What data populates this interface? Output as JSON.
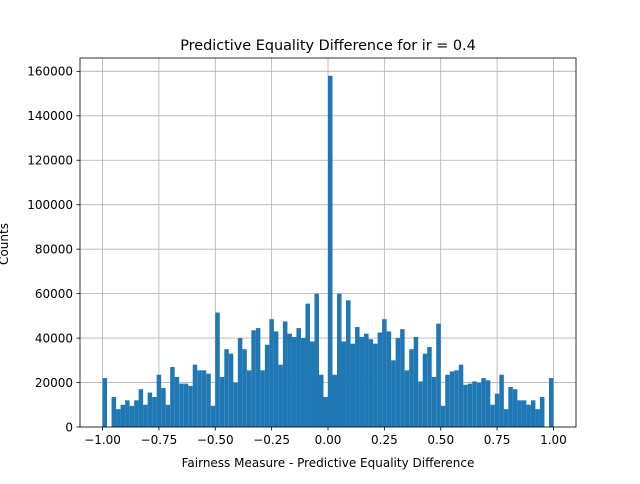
{
  "chart_data": {
    "type": "bar",
    "title": "Predictive Equality Difference for ir = 0.4",
    "xlabel": "Fairness Measure - Predictive Equality Difference",
    "ylabel": "Counts",
    "grid": true,
    "xlim": [
      -1.1,
      1.1
    ],
    "ylim": [
      0,
      166000
    ],
    "bin_width": 0.02,
    "x_ticks": [
      -1.0,
      -0.75,
      -0.5,
      -0.25,
      0.0,
      0.25,
      0.5,
      0.75,
      1.0
    ],
    "x_tick_labels": [
      "−1.00",
      "−0.75",
      "−0.50",
      "−0.25",
      "0.00",
      "0.25",
      "0.50",
      "0.75",
      "1.00"
    ],
    "y_ticks": [
      0,
      20000,
      40000,
      60000,
      80000,
      100000,
      120000,
      140000,
      160000
    ],
    "y_tick_labels": [
      "0",
      "20000",
      "40000",
      "60000",
      "80000",
      "100000",
      "120000",
      "140000",
      "160000"
    ],
    "bar_color": "#1f77b4",
    "bins": [
      {
        "x0": -1.0,
        "count": 22000
      },
      {
        "x0": -0.98,
        "count": 0
      },
      {
        "x0": -0.96,
        "count": 13500
      },
      {
        "x0": -0.94,
        "count": 8000
      },
      {
        "x0": -0.92,
        "count": 10000
      },
      {
        "x0": -0.9,
        "count": 12000
      },
      {
        "x0": -0.88,
        "count": 9500
      },
      {
        "x0": -0.86,
        "count": 12000
      },
      {
        "x0": -0.84,
        "count": 17000
      },
      {
        "x0": -0.82,
        "count": 10000
      },
      {
        "x0": -0.8,
        "count": 15500
      },
      {
        "x0": -0.78,
        "count": 13500
      },
      {
        "x0": -0.76,
        "count": 23500
      },
      {
        "x0": -0.74,
        "count": 17500
      },
      {
        "x0": -0.72,
        "count": 10000
      },
      {
        "x0": -0.7,
        "count": 27000
      },
      {
        "x0": -0.68,
        "count": 22500
      },
      {
        "x0": -0.66,
        "count": 19500
      },
      {
        "x0": -0.64,
        "count": 19500
      },
      {
        "x0": -0.62,
        "count": 18500
      },
      {
        "x0": -0.6,
        "count": 28000
      },
      {
        "x0": -0.58,
        "count": 25500
      },
      {
        "x0": -0.56,
        "count": 25500
      },
      {
        "x0": -0.54,
        "count": 24000
      },
      {
        "x0": -0.52,
        "count": 9500
      },
      {
        "x0": -0.5,
        "count": 51500
      },
      {
        "x0": -0.48,
        "count": 22500
      },
      {
        "x0": -0.46,
        "count": 35000
      },
      {
        "x0": -0.44,
        "count": 33000
      },
      {
        "x0": -0.42,
        "count": 20000
      },
      {
        "x0": -0.4,
        "count": 40000
      },
      {
        "x0": -0.38,
        "count": 35000
      },
      {
        "x0": -0.36,
        "count": 25500
      },
      {
        "x0": -0.34,
        "count": 43500
      },
      {
        "x0": -0.32,
        "count": 44500
      },
      {
        "x0": -0.3,
        "count": 25500
      },
      {
        "x0": -0.28,
        "count": 37000
      },
      {
        "x0": -0.26,
        "count": 48500
      },
      {
        "x0": -0.24,
        "count": 43000
      },
      {
        "x0": -0.22,
        "count": 28000
      },
      {
        "x0": -0.2,
        "count": 47500
      },
      {
        "x0": -0.18,
        "count": 42000
      },
      {
        "x0": -0.16,
        "count": 40500
      },
      {
        "x0": -0.14,
        "count": 44500
      },
      {
        "x0": -0.12,
        "count": 40000
      },
      {
        "x0": -0.1,
        "count": 55500
      },
      {
        "x0": -0.08,
        "count": 38500
      },
      {
        "x0": -0.06,
        "count": 60000
      },
      {
        "x0": -0.04,
        "count": 23500
      },
      {
        "x0": -0.02,
        "count": 13500
      },
      {
        "x0": 0.0,
        "count": 158000
      },
      {
        "x0": 0.02,
        "count": 23500
      },
      {
        "x0": 0.04,
        "count": 60000
      },
      {
        "x0": 0.06,
        "count": 38500
      },
      {
        "x0": 0.08,
        "count": 57000
      },
      {
        "x0": 0.1,
        "count": 37500
      },
      {
        "x0": 0.12,
        "count": 45000
      },
      {
        "x0": 0.14,
        "count": 40500
      },
      {
        "x0": 0.16,
        "count": 42000
      },
      {
        "x0": 0.18,
        "count": 39500
      },
      {
        "x0": 0.2,
        "count": 37500
      },
      {
        "x0": 0.22,
        "count": 42500
      },
      {
        "x0": 0.24,
        "count": 48500
      },
      {
        "x0": 0.26,
        "count": 43000
      },
      {
        "x0": 0.28,
        "count": 30000
      },
      {
        "x0": 0.3,
        "count": 40000
      },
      {
        "x0": 0.32,
        "count": 44000
      },
      {
        "x0": 0.34,
        "count": 25500
      },
      {
        "x0": 0.36,
        "count": 35000
      },
      {
        "x0": 0.38,
        "count": 40500
      },
      {
        "x0": 0.4,
        "count": 20500
      },
      {
        "x0": 0.42,
        "count": 33000
      },
      {
        "x0": 0.44,
        "count": 36000
      },
      {
        "x0": 0.46,
        "count": 22500
      },
      {
        "x0": 0.48,
        "count": 46500
      },
      {
        "x0": 0.5,
        "count": 9500
      },
      {
        "x0": 0.52,
        "count": 23500
      },
      {
        "x0": 0.54,
        "count": 25000
      },
      {
        "x0": 0.56,
        "count": 25500
      },
      {
        "x0": 0.58,
        "count": 28000
      },
      {
        "x0": 0.6,
        "count": 19000
      },
      {
        "x0": 0.62,
        "count": 19500
      },
      {
        "x0": 0.64,
        "count": 20500
      },
      {
        "x0": 0.66,
        "count": 20000
      },
      {
        "x0": 0.68,
        "count": 22000
      },
      {
        "x0": 0.7,
        "count": 21000
      },
      {
        "x0": 0.72,
        "count": 10000
      },
      {
        "x0": 0.74,
        "count": 15000
      },
      {
        "x0": 0.76,
        "count": 23500
      },
      {
        "x0": 0.78,
        "count": 8000
      },
      {
        "x0": 0.8,
        "count": 18000
      },
      {
        "x0": 0.82,
        "count": 17000
      },
      {
        "x0": 0.84,
        "count": 12000
      },
      {
        "x0": 0.86,
        "count": 12000
      },
      {
        "x0": 0.88,
        "count": 10000
      },
      {
        "x0": 0.9,
        "count": 12000
      },
      {
        "x0": 0.92,
        "count": 8000
      },
      {
        "x0": 0.94,
        "count": 13500
      },
      {
        "x0": 0.96,
        "count": 0
      },
      {
        "x0": 0.98,
        "count": 22000
      }
    ]
  }
}
